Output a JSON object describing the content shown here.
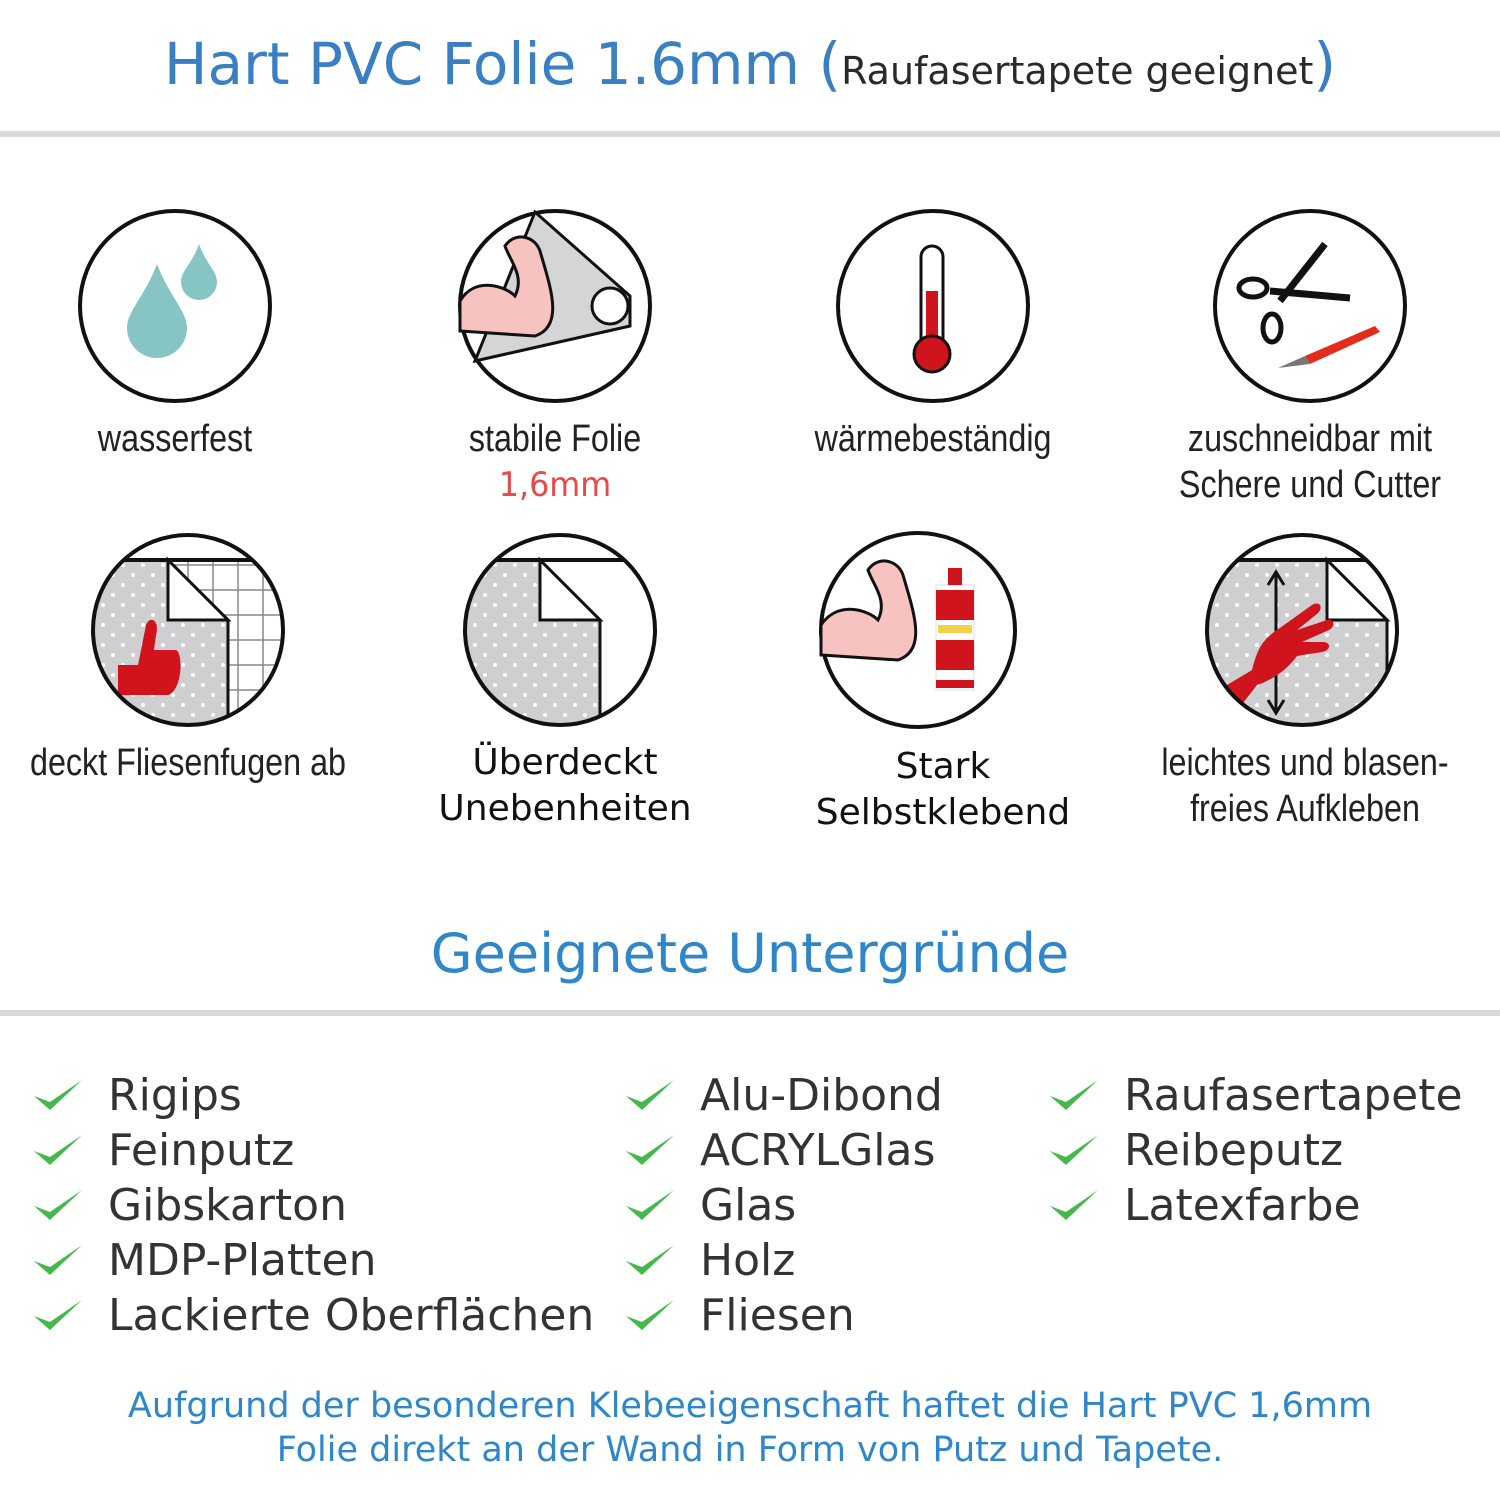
{
  "header": {
    "title": "Hart PVC Folie 1.6mm",
    "paren_open": "(",
    "subtitle": "Raufasertapete geeignet",
    "paren_close": ")"
  },
  "features": [
    {
      "icon": "water-drops-icon",
      "line1": "wasserfest"
    },
    {
      "icon": "strong-arm-foil-icon",
      "line1": "stabile Folie",
      "line2": "1,6mm"
    },
    {
      "icon": "thermometer-icon",
      "line1": "wärmebeständig"
    },
    {
      "icon": "scissors-cutter-icon",
      "line1": "zuschneidbar mit",
      "line2": "Schere und Cutter"
    },
    {
      "icon": "thumbs-up-tiles-icon",
      "line1": "deckt Fliesenfugen ab"
    },
    {
      "icon": "foil-corner-icon",
      "line1": "Überdeckt",
      "line2": "Unebenheiten"
    },
    {
      "icon": "strong-arm-glue-icon",
      "line1": "Stark",
      "line2": "Selbstklebend"
    },
    {
      "icon": "hand-smoothing-icon",
      "line1": "leichtes und blasen-",
      "line2": "freies Aufkleben"
    }
  ],
  "surfaces": {
    "title": "Geeignete Untergründe",
    "col1": [
      "Rigips",
      "Feinputz",
      "Gibskarton",
      "MDP-Platten",
      "Lackierte Oberflächen"
    ],
    "col2": [
      "Alu-Dibond",
      "ACRYLGlas",
      "Glas",
      "Holz",
      "Fliesen"
    ],
    "col3": [
      "Raufasertapete",
      "Reibeputz",
      "Latexfarbe"
    ]
  },
  "footer": {
    "line1": "Aufgrund der besonderen Klebeeigenschaft haftet die Hart PVC 1,6mm",
    "line2": "Folie direkt an der Wand in Form von Putz und Tapete."
  },
  "colors": {
    "title_blue": "#3a7fc1",
    "heading_blue": "#2f86c8",
    "check_green": "#44b84a",
    "accent_red": "#e84a4a",
    "icon_red": "#d0141d",
    "drop_teal": "#86c5c4"
  }
}
